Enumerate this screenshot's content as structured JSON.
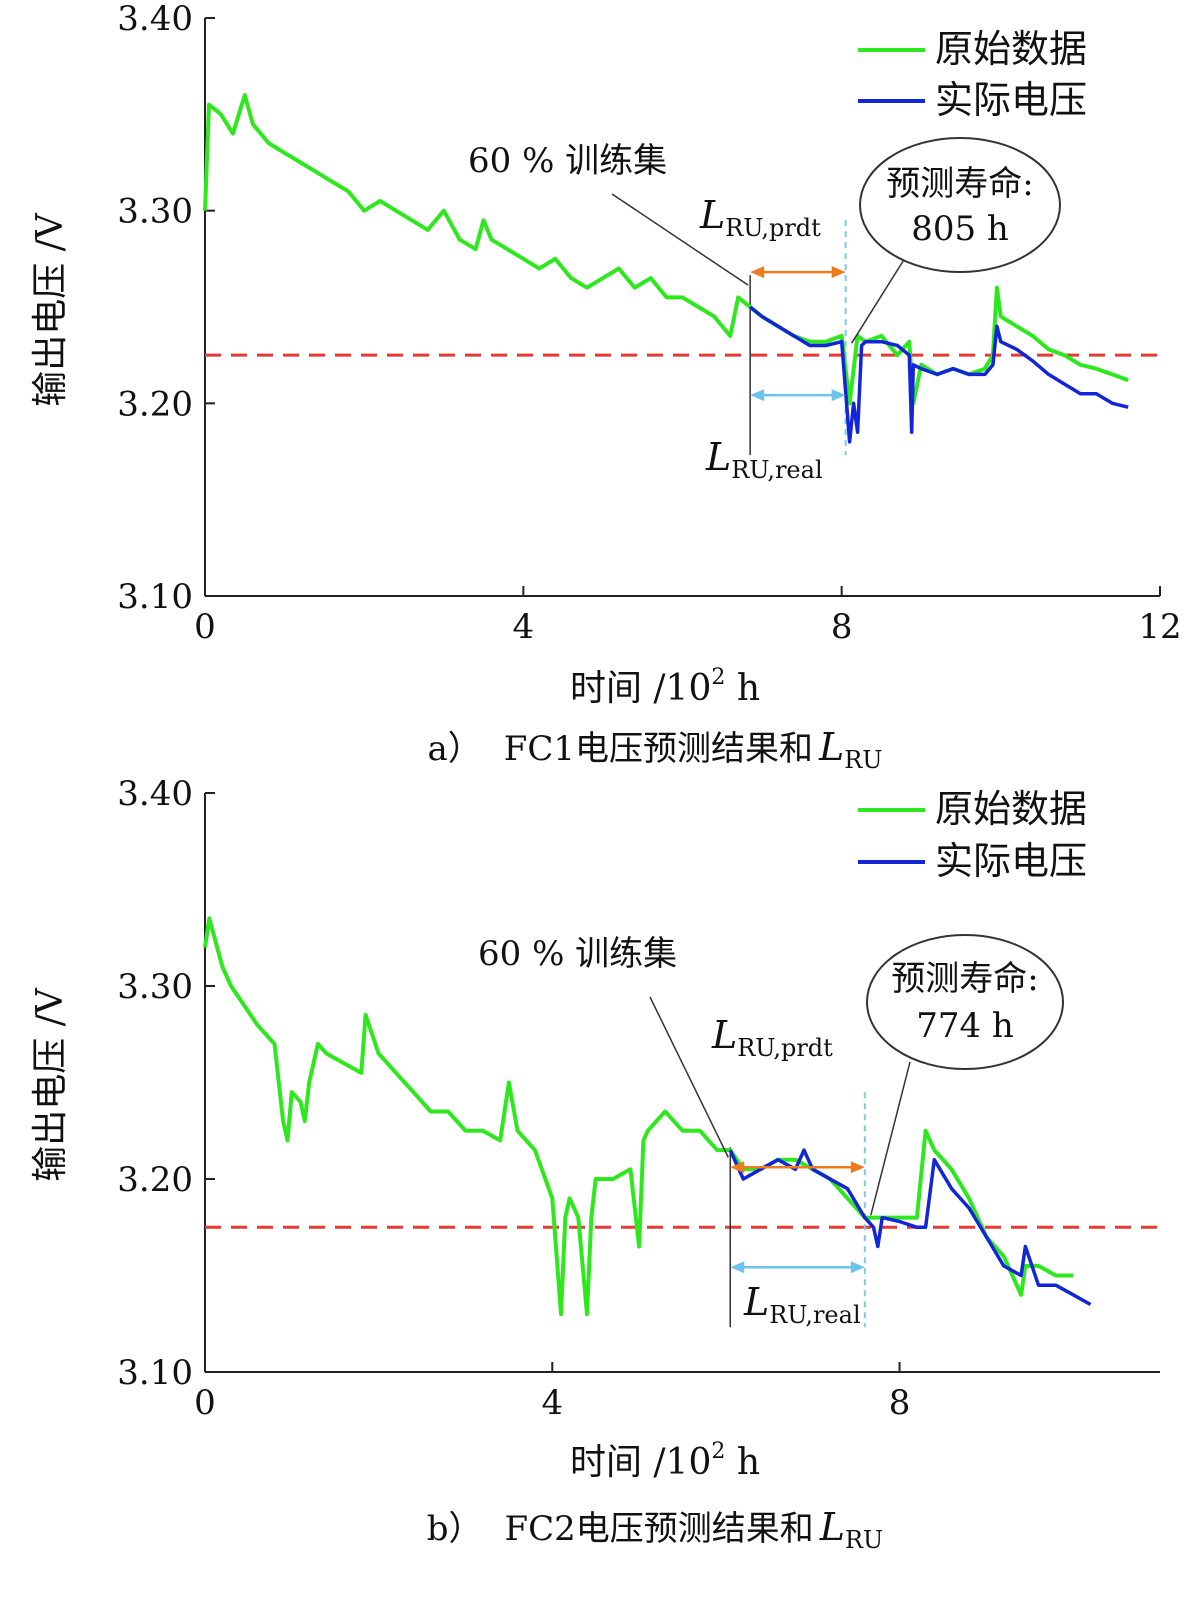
{
  "chart_data": [
    {
      "id": "a",
      "type": "line",
      "caption_prefix": "a）",
      "caption_text": "FC1电压预测结果和",
      "caption_L": "L",
      "caption_L_sub": "RU",
      "xlabel": "时间 /10",
      "xlabel_sup": "2",
      "xlabel_unit": " h",
      "ylabel": "输出电压 /V",
      "xlim": [
        0,
        12
      ],
      "ylim": [
        3.1,
        3.4
      ],
      "xticks": [
        0,
        4,
        8,
        12
      ],
      "xtick_labels": [
        "0",
        "4",
        "8",
        "12"
      ],
      "yticks": [
        3.1,
        3.2,
        3.3,
        3.4
      ],
      "ytick_labels": [
        "3.10",
        "3.20",
        "3.30",
        "3.40"
      ],
      "legend": [
        "原始数据",
        "实际电压"
      ],
      "threshold": 3.225,
      "train_end": 6.85,
      "predict_end": 8.05,
      "train_label": "60 % 训练集",
      "callout_title": "预测寿命:",
      "callout_value": "805 h",
      "L_prdt_main": "L",
      "L_prdt_sub": "RU,prdt",
      "L_real_main": "L",
      "L_real_sub": "RU,real",
      "series": [
        {
          "name": "原始数据",
          "color": "#2ee81e",
          "x": [
            0,
            0.05,
            0.2,
            0.35,
            0.5,
            0.6,
            0.7,
            0.8,
            1.0,
            1.2,
            1.4,
            1.6,
            1.8,
            2.0,
            2.2,
            2.4,
            2.6,
            2.8,
            3.0,
            3.2,
            3.4,
            3.5,
            3.6,
            3.8,
            4.0,
            4.2,
            4.4,
            4.6,
            4.8,
            5.0,
            5.2,
            5.4,
            5.6,
            5.8,
            6.0,
            6.2,
            6.4,
            6.6,
            6.7,
            6.85,
            7.0,
            7.2,
            7.4,
            7.6,
            7.8,
            8.0,
            8.1,
            8.2,
            8.3,
            8.5,
            8.7,
            8.85,
            8.9,
            9.0,
            9.2,
            9.4,
            9.6,
            9.8,
            9.9,
            9.95,
            10.0,
            10.2,
            10.4,
            10.6,
            10.8,
            11.0,
            11.2,
            11.4,
            11.6
          ],
          "values": [
            3.3,
            3.355,
            3.35,
            3.34,
            3.36,
            3.345,
            3.34,
            3.335,
            3.33,
            3.325,
            3.32,
            3.315,
            3.31,
            3.3,
            3.305,
            3.3,
            3.295,
            3.29,
            3.3,
            3.285,
            3.28,
            3.295,
            3.285,
            3.28,
            3.275,
            3.27,
            3.275,
            3.265,
            3.26,
            3.265,
            3.27,
            3.26,
            3.265,
            3.255,
            3.255,
            3.25,
            3.245,
            3.235,
            3.255,
            3.25,
            3.245,
            3.24,
            3.235,
            3.232,
            3.232,
            3.235,
            3.2,
            3.235,
            3.232,
            3.235,
            3.225,
            3.232,
            3.2,
            3.22,
            3.215,
            3.218,
            3.215,
            3.218,
            3.225,
            3.26,
            3.245,
            3.24,
            3.235,
            3.228,
            3.225,
            3.22,
            3.218,
            3.215,
            3.212
          ]
        },
        {
          "name": "实际电压",
          "color": "#1226d8",
          "x": [
            6.85,
            7.0,
            7.2,
            7.4,
            7.6,
            7.8,
            8.0,
            8.1,
            8.15,
            8.2,
            8.25,
            8.3,
            8.5,
            8.7,
            8.85,
            8.88,
            8.9,
            9.0,
            9.2,
            9.4,
            9.6,
            9.8,
            9.9,
            9.95,
            10.0,
            10.2,
            10.4,
            10.6,
            10.8,
            11.0,
            11.2,
            11.4,
            11.6
          ],
          "values": [
            3.25,
            3.245,
            3.24,
            3.235,
            3.23,
            3.23,
            3.232,
            3.18,
            3.2,
            3.185,
            3.23,
            3.232,
            3.232,
            3.23,
            3.225,
            3.185,
            3.22,
            3.218,
            3.215,
            3.218,
            3.215,
            3.215,
            3.22,
            3.24,
            3.232,
            3.228,
            3.222,
            3.215,
            3.21,
            3.205,
            3.205,
            3.2,
            3.198
          ]
        }
      ]
    },
    {
      "id": "b",
      "type": "line",
      "caption_prefix": "b）",
      "caption_text": "FC2电压预测结果和",
      "caption_L": "L",
      "caption_L_sub": "RU",
      "xlabel": "时间 /10",
      "xlabel_sup": "2",
      "xlabel_unit": " h",
      "ylabel": "输出电压 /V",
      "xlim": [
        0,
        11
      ],
      "ylim": [
        3.1,
        3.4
      ],
      "xticks": [
        0,
        4,
        8
      ],
      "xtick_labels": [
        "0",
        "4",
        "8"
      ],
      "yticks": [
        3.1,
        3.2,
        3.3,
        3.4
      ],
      "ytick_labels": [
        "3.10",
        "3.20",
        "3.30",
        "3.40"
      ],
      "legend": [
        "原始数据",
        "实际电压"
      ],
      "threshold": 3.175,
      "train_end": 6.05,
      "predict_end": 7.6,
      "train_label": "60 % 训练集",
      "callout_title": "预测寿命:",
      "callout_value": "774 h",
      "L_prdt_main": "L",
      "L_prdt_sub": "RU,prdt",
      "L_real_main": "L",
      "L_real_sub": "RU,real",
      "series": [
        {
          "name": "原始数据",
          "color": "#2ee81e",
          "x": [
            0,
            0.05,
            0.2,
            0.3,
            0.45,
            0.6,
            0.8,
            0.9,
            0.95,
            1.0,
            1.1,
            1.15,
            1.2,
            1.3,
            1.4,
            1.6,
            1.8,
            1.85,
            2.0,
            2.2,
            2.4,
            2.6,
            2.8,
            3.0,
            3.2,
            3.4,
            3.5,
            3.6,
            3.8,
            4.0,
            4.1,
            4.15,
            4.2,
            4.3,
            4.4,
            4.45,
            4.5,
            4.7,
            4.9,
            5.0,
            5.05,
            5.1,
            5.3,
            5.5,
            5.7,
            5.9,
            6.05,
            6.2,
            6.4,
            6.6,
            6.8,
            7.0,
            7.2,
            7.4,
            7.6,
            7.8,
            8.0,
            8.2,
            8.3,
            8.4,
            8.6,
            8.8,
            9.0,
            9.2,
            9.4,
            9.45,
            9.6,
            9.8,
            10.0
          ],
          "values": [
            3.32,
            3.335,
            3.31,
            3.3,
            3.29,
            3.28,
            3.27,
            3.23,
            3.22,
            3.245,
            3.24,
            3.23,
            3.25,
            3.27,
            3.265,
            3.26,
            3.255,
            3.285,
            3.265,
            3.255,
            3.245,
            3.235,
            3.235,
            3.225,
            3.225,
            3.22,
            3.25,
            3.225,
            3.215,
            3.19,
            3.13,
            3.18,
            3.19,
            3.18,
            3.13,
            3.18,
            3.2,
            3.2,
            3.205,
            3.165,
            3.22,
            3.225,
            3.235,
            3.225,
            3.225,
            3.215,
            3.215,
            3.205,
            3.205,
            3.21,
            3.21,
            3.205,
            3.2,
            3.19,
            3.18,
            3.18,
            3.18,
            3.18,
            3.225,
            3.215,
            3.205,
            3.19,
            3.17,
            3.16,
            3.14,
            3.155,
            3.155,
            3.15,
            3.15
          ]
        },
        {
          "name": "实际电压",
          "color": "#1226d8",
          "x": [
            6.05,
            6.2,
            6.4,
            6.6,
            6.8,
            6.9,
            7.0,
            7.2,
            7.4,
            7.6,
            7.7,
            7.75,
            7.8,
            8.0,
            8.2,
            8.3,
            8.4,
            8.6,
            8.8,
            9.0,
            9.2,
            9.4,
            9.45,
            9.6,
            9.8,
            10.0,
            10.2
          ],
          "values": [
            3.215,
            3.2,
            3.205,
            3.21,
            3.205,
            3.215,
            3.205,
            3.2,
            3.195,
            3.18,
            3.175,
            3.165,
            3.18,
            3.178,
            3.175,
            3.175,
            3.21,
            3.195,
            3.185,
            3.17,
            3.155,
            3.15,
            3.165,
            3.145,
            3.145,
            3.14,
            3.135
          ]
        }
      ]
    }
  ]
}
